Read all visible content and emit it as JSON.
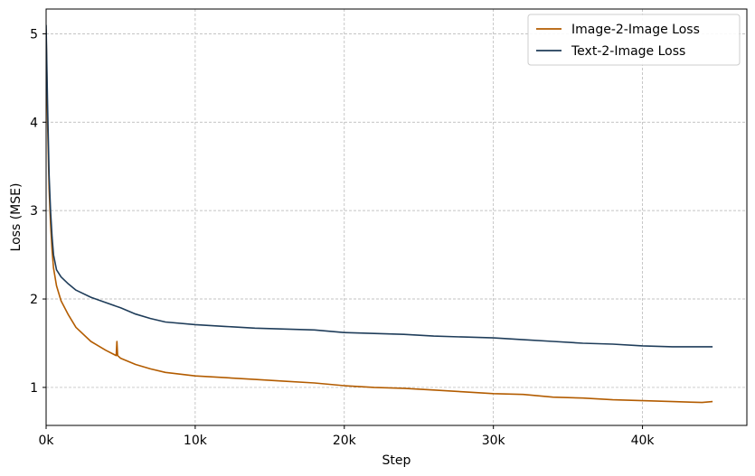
{
  "chart_data": {
    "type": "line",
    "title": "",
    "xlabel": "Step",
    "ylabel": "Loss (MSE)",
    "xlim": [
      0,
      47000
    ],
    "ylim": [
      0.57,
      5.28
    ],
    "x_ticks": [
      0,
      10000,
      20000,
      30000,
      40000
    ],
    "x_tick_labels": [
      "0k",
      "10k",
      "20k",
      "30k",
      "40k"
    ],
    "y_ticks": [
      1,
      2,
      3,
      4,
      5
    ],
    "y_tick_labels": [
      "1",
      "2",
      "3",
      "4",
      "5"
    ],
    "grid": true,
    "legend_position": "top-right",
    "series": [
      {
        "name": "Image-2-Image Loss",
        "color": "#b35c00",
        "x": [
          0,
          100,
          200,
          300,
          400,
          500,
          700,
          1000,
          1500,
          2000,
          3000,
          4000,
          4700,
          4750,
          4800,
          5000,
          6000,
          7000,
          8000,
          10000,
          12000,
          14000,
          16000,
          18000,
          20000,
          22000,
          24000,
          26000,
          28000,
          30000,
          32000,
          34000,
          36000,
          38000,
          40000,
          42000,
          44000,
          44700
        ],
        "y": [
          5.05,
          4.0,
          3.25,
          2.85,
          2.55,
          2.35,
          2.15,
          1.98,
          1.82,
          1.68,
          1.52,
          1.42,
          1.36,
          1.52,
          1.36,
          1.33,
          1.26,
          1.21,
          1.17,
          1.13,
          1.11,
          1.09,
          1.07,
          1.05,
          1.02,
          1.0,
          0.99,
          0.97,
          0.95,
          0.93,
          0.92,
          0.89,
          0.88,
          0.86,
          0.85,
          0.84,
          0.83,
          0.84
        ]
      },
      {
        "name": "Text-2-Image Loss",
        "color": "#1f3d5a",
        "x": [
          0,
          100,
          200,
          300,
          400,
          500,
          700,
          1000,
          1500,
          2000,
          3000,
          4000,
          5000,
          6000,
          7000,
          8000,
          10000,
          12000,
          14000,
          16000,
          18000,
          20000,
          22000,
          24000,
          26000,
          28000,
          30000,
          32000,
          34000,
          36000,
          38000,
          40000,
          42000,
          44000,
          44700
        ],
        "y": [
          5.1,
          4.2,
          3.4,
          3.0,
          2.7,
          2.5,
          2.33,
          2.25,
          2.17,
          2.1,
          2.02,
          1.96,
          1.9,
          1.83,
          1.78,
          1.74,
          1.71,
          1.69,
          1.67,
          1.66,
          1.65,
          1.62,
          1.61,
          1.6,
          1.58,
          1.57,
          1.56,
          1.54,
          1.52,
          1.5,
          1.49,
          1.47,
          1.46,
          1.46,
          1.46
        ]
      }
    ]
  }
}
